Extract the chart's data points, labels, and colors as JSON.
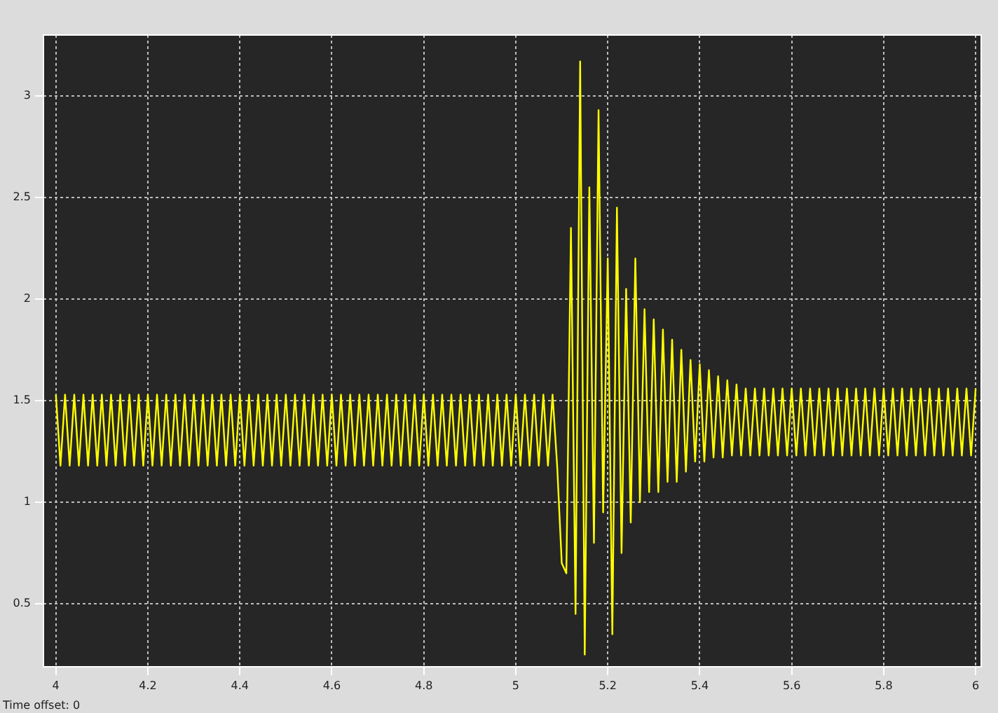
{
  "chart_data": {
    "type": "line",
    "annotations": [
      "Time offset:  0"
    ],
    "xlim": [
      3.973,
      6.012
    ],
    "xticks": [
      4,
      4.2,
      4.4,
      4.6,
      4.8,
      5,
      5.2,
      5.4,
      5.6,
      5.8,
      6
    ],
    "ylim": [
      0.19,
      3.3
    ],
    "yticks": [
      0.5,
      1,
      1.5,
      2,
      2.5,
      3
    ],
    "grid": true,
    "legend": false,
    "marker": "none",
    "line_style": "solid",
    "x": [
      4.0,
      4.01,
      4.02,
      4.03,
      4.04,
      4.05,
      4.06,
      4.07,
      4.08,
      4.09,
      4.1,
      4.11,
      4.12,
      4.13,
      4.14,
      4.15,
      4.16,
      4.17,
      4.18,
      4.19,
      4.2,
      4.21,
      4.22,
      4.23,
      4.24,
      4.25,
      4.26,
      4.27,
      4.28,
      4.29,
      4.3,
      4.31,
      4.32,
      4.33,
      4.34,
      4.35,
      4.36,
      4.37,
      4.38,
      4.39,
      4.4,
      4.41,
      4.42,
      4.43,
      4.44,
      4.45,
      4.46,
      4.47,
      4.48,
      4.49,
      4.5,
      4.51,
      4.52,
      4.53,
      4.54,
      4.55,
      4.56,
      4.57,
      4.58,
      4.59,
      4.6,
      4.61,
      4.62,
      4.63,
      4.64,
      4.65,
      4.66,
      4.67,
      4.68,
      4.69,
      4.7,
      4.71,
      4.72,
      4.73,
      4.74,
      4.75,
      4.76,
      4.77,
      4.78,
      4.79,
      4.8,
      4.81,
      4.82,
      4.83,
      4.84,
      4.85,
      4.86,
      4.87,
      4.88,
      4.89,
      4.9,
      4.91,
      4.92,
      4.93,
      4.94,
      4.95,
      4.96,
      4.97,
      4.98,
      4.99,
      5.0,
      5.01,
      5.02,
      5.03,
      5.04,
      5.05,
      5.06,
      5.07,
      5.08,
      5.09,
      5.1,
      5.11,
      5.12,
      5.13,
      5.14,
      5.15,
      5.16,
      5.17,
      5.18,
      5.19,
      5.2,
      5.21,
      5.22,
      5.23,
      5.24,
      5.25,
      5.26,
      5.27,
      5.28,
      5.29,
      5.3,
      5.31,
      5.32,
      5.33,
      5.34,
      5.35,
      5.36,
      5.37,
      5.38,
      5.39,
      5.4,
      5.41,
      5.42,
      5.43,
      5.44,
      5.45,
      5.46,
      5.47,
      5.48,
      5.49,
      5.5,
      5.51,
      5.52,
      5.53,
      5.54,
      5.55,
      5.56,
      5.57,
      5.58,
      5.59,
      5.6,
      5.61,
      5.62,
      5.63,
      5.64,
      5.65,
      5.66,
      5.67,
      5.68,
      5.69,
      5.7,
      5.71,
      5.72,
      5.73,
      5.74,
      5.75,
      5.76,
      5.77,
      5.78,
      5.79,
      5.8,
      5.81,
      5.82,
      5.83,
      5.84,
      5.85,
      5.86,
      5.87,
      5.88,
      5.89,
      5.9,
      5.91,
      5.92,
      5.93,
      5.94,
      5.95,
      5.96,
      5.97,
      5.98,
      5.99,
      6.0
    ],
    "series": [
      {
        "color": "#ffff00",
        "values": [
          1.53,
          1.18,
          1.53,
          1.18,
          1.53,
          1.18,
          1.53,
          1.18,
          1.53,
          1.18,
          1.53,
          1.18,
          1.53,
          1.18,
          1.53,
          1.18,
          1.53,
          1.18,
          1.53,
          1.18,
          1.53,
          1.18,
          1.53,
          1.18,
          1.53,
          1.18,
          1.53,
          1.18,
          1.53,
          1.18,
          1.53,
          1.18,
          1.53,
          1.18,
          1.53,
          1.18,
          1.53,
          1.18,
          1.53,
          1.18,
          1.53,
          1.18,
          1.53,
          1.18,
          1.53,
          1.18,
          1.53,
          1.18,
          1.53,
          1.18,
          1.53,
          1.18,
          1.53,
          1.18,
          1.53,
          1.18,
          1.53,
          1.18,
          1.53,
          1.18,
          1.53,
          1.18,
          1.53,
          1.18,
          1.53,
          1.18,
          1.53,
          1.18,
          1.53,
          1.18,
          1.53,
          1.18,
          1.53,
          1.18,
          1.53,
          1.18,
          1.53,
          1.18,
          1.53,
          1.18,
          1.53,
          1.18,
          1.53,
          1.18,
          1.53,
          1.18,
          1.53,
          1.18,
          1.53,
          1.18,
          1.53,
          1.18,
          1.53,
          1.18,
          1.53,
          1.18,
          1.53,
          1.18,
          1.53,
          1.18,
          1.53,
          1.18,
          1.53,
          1.18,
          1.53,
          1.18,
          1.53,
          1.18,
          1.53,
          1.18,
          0.7,
          0.65,
          2.35,
          0.45,
          3.17,
          0.25,
          2.55,
          0.8,
          2.93,
          0.95,
          2.2,
          0.35,
          2.45,
          0.75,
          2.05,
          0.9,
          2.2,
          1.0,
          1.95,
          1.05,
          1.9,
          1.05,
          1.85,
          1.1,
          1.8,
          1.1,
          1.75,
          1.15,
          1.7,
          1.2,
          1.68,
          1.2,
          1.65,
          1.22,
          1.62,
          1.22,
          1.6,
          1.23,
          1.58,
          1.23,
          1.56,
          1.23,
          1.56,
          1.23,
          1.56,
          1.23,
          1.56,
          1.23,
          1.56,
          1.23,
          1.56,
          1.23,
          1.56,
          1.23,
          1.56,
          1.23,
          1.56,
          1.23,
          1.56,
          1.23,
          1.56,
          1.23,
          1.56,
          1.23,
          1.56,
          1.23,
          1.56,
          1.23,
          1.56,
          1.23,
          1.56,
          1.23,
          1.56,
          1.23,
          1.56,
          1.23,
          1.56,
          1.23,
          1.56,
          1.23,
          1.56,
          1.23,
          1.56,
          1.23,
          1.56,
          1.23,
          1.56,
          1.23,
          1.56,
          1.23,
          1.56
        ]
      }
    ]
  }
}
